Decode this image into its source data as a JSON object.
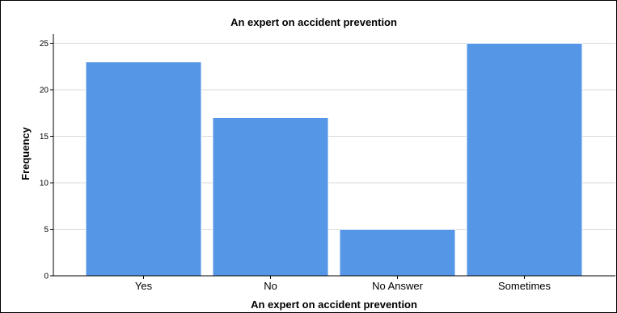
{
  "chart_data": {
    "type": "bar",
    "title": "An expert on accident prevention",
    "xlabel": "An expert on accident prevention",
    "ylabel": "Frequency",
    "categories": [
      "Yes",
      "No",
      "No Answer",
      "Sometimes"
    ],
    "values": [
      23,
      17,
      5,
      25
    ],
    "ylim": [
      0,
      26
    ],
    "yticks": [
      0,
      5,
      10,
      15,
      20,
      25
    ],
    "grid": true,
    "bar_color": "#5596E6",
    "bar_edge_color": "#ffffff"
  }
}
